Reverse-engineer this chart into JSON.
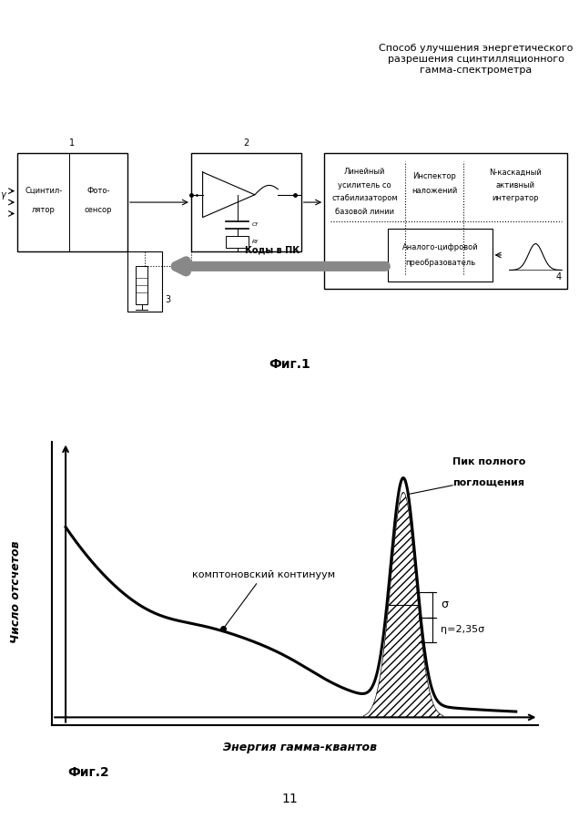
{
  "title": "Способ улучшения энергетического\nразрешения сцинтилляционного\nгамма-спектрометра",
  "fig1_label": "Фиг.1",
  "fig2_label": "Фиг.2",
  "page_number": "11",
  "block1_label": "1",
  "block1_text1": "Сцинтил-",
  "block1_text2": "лятор",
  "block1_text3": "Фото-",
  "block1_text4": "сенсор",
  "block2_label": "2",
  "block3_label": "3",
  "block4_label": "4",
  "box4_text1": "Линейный",
  "box4_text2": "усилитель со",
  "box4_text3": "стабилизатором",
  "box4_text4": "базовой линии",
  "box4_text5": "Инспектор",
  "box4_text6": "наложений",
  "box4_text7": "N-каскадный",
  "box4_text8": "активный",
  "box4_text9": "интегратор",
  "box4_text10": "Аналого-цифровой",
  "box4_text11": "преобразователь",
  "arrow_label": "Коды в ПК",
  "ylabel": "Число отсчетов",
  "xlabel": "Энергия гамма-квантов",
  "compton_label": "комптоновский континуум",
  "peak_label1": "Пик полного",
  "peak_label2": "поглощения",
  "sigma_label": "σ",
  "eta_label": "η=2,35σ",
  "bg_color": "#ffffff",
  "line_color": "#000000"
}
